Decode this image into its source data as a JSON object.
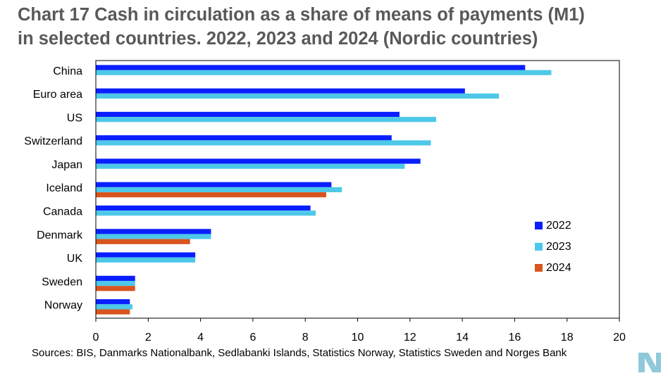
{
  "title_line1": "Chart 17 Cash in circulation as a share of means of payments (M1)",
  "title_line2": "in selected countries. 2022, 2023 and 2024 (Nordic countries)",
  "source": "Sources: BIS, Danmarks Nationalbank, Sedlabanki Islands, Statistics Norway, Statistics Sweden and Norges Bank",
  "colors": {
    "2022": "#0A1FFF",
    "2023": "#4DC8E8",
    "2024": "#D9541E",
    "frame": "#000000",
    "title": "#595959",
    "logo": "#8FC9DA"
  },
  "chart_data": {
    "type": "bar",
    "orientation": "horizontal",
    "title": "Chart 17 Cash in circulation as a share of means of payments (M1) in selected countries. 2022, 2023 and 2024 (Nordic countries)",
    "categories": [
      "China",
      "Euro area",
      "US",
      "Switzerland",
      "Japan",
      "Iceland",
      "Canada",
      "Denmark",
      "UK",
      "Sweden",
      "Norway"
    ],
    "series": [
      {
        "name": "2022",
        "color": "#0A1FFF",
        "values": [
          16.4,
          14.1,
          11.6,
          11.3,
          12.4,
          9.0,
          8.2,
          4.4,
          3.8,
          1.5,
          1.3
        ]
      },
      {
        "name": "2023",
        "color": "#4DC8E8",
        "values": [
          17.4,
          15.4,
          13.0,
          12.8,
          11.8,
          9.4,
          8.4,
          4.4,
          3.8,
          1.5,
          1.4
        ]
      },
      {
        "name": "2024",
        "color": "#D9541E",
        "values": [
          null,
          null,
          null,
          null,
          null,
          8.8,
          null,
          3.6,
          null,
          1.5,
          1.3
        ]
      }
    ],
    "xlim": [
      0,
      20
    ],
    "xticks": [
      0,
      2,
      4,
      6,
      8,
      10,
      12,
      14,
      16,
      18,
      20
    ],
    "xlabel": "",
    "ylabel": "",
    "grid": false,
    "legend": {
      "position": "right",
      "entries": [
        "2022",
        "2023",
        "2024"
      ]
    }
  }
}
